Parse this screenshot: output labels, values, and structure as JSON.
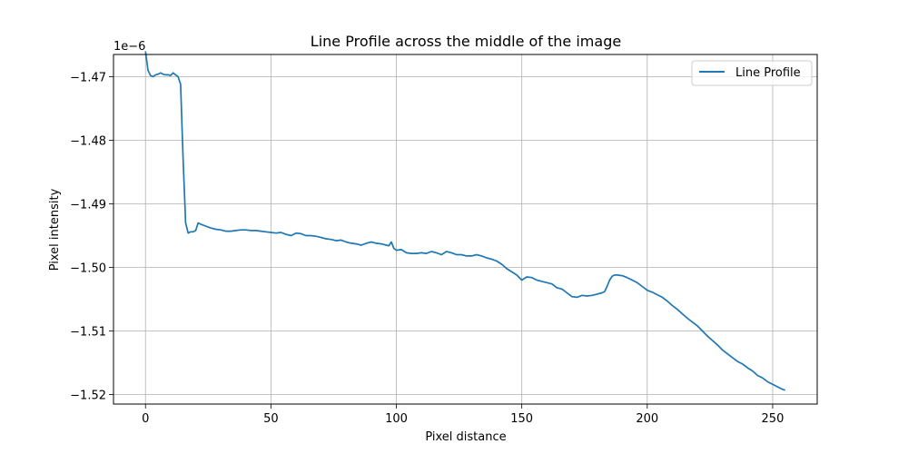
{
  "chart_data": {
    "type": "line",
    "title": "Line Profile across the middle of the image",
    "xlabel": "Pixel distance",
    "ylabel": "Pixel intensity",
    "offset_text": "1e−6",
    "xlim": [
      -12.75,
      267.75
    ],
    "ylim": [
      -1.5215,
      -1.4665
    ],
    "xticks": [
      0,
      50,
      100,
      150,
      200,
      250
    ],
    "xtick_labels": [
      "0",
      "50",
      "100",
      "150",
      "200",
      "250"
    ],
    "yticks": [
      -1.52,
      -1.51,
      -1.5,
      -1.49,
      -1.48,
      -1.47
    ],
    "ytick_labels": [
      "−1.52",
      "−1.51",
      "−1.50",
      "−1.49",
      "−1.48",
      "−1.47"
    ],
    "grid": true,
    "legend_position": "top-right",
    "series": [
      {
        "name": "Line Profile",
        "color": "#1f77b4",
        "x": [
          0,
          1,
          2,
          3,
          4,
          5,
          6,
          7,
          8,
          9,
          10,
          11,
          12,
          13,
          14,
          15,
          16,
          17,
          18,
          19,
          20,
          21,
          22,
          24,
          26,
          28,
          30,
          32,
          34,
          36,
          38,
          40,
          42,
          44,
          46,
          48,
          50,
          52,
          54,
          56,
          58,
          60,
          62,
          64,
          66,
          68,
          70,
          72,
          74,
          76,
          78,
          80,
          82,
          84,
          86,
          88,
          90,
          92,
          94,
          96,
          97,
          98,
          99,
          100,
          102,
          104,
          106,
          108,
          110,
          112,
          114,
          116,
          118,
          120,
          122,
          124,
          126,
          128,
          130,
          132,
          134,
          136,
          138,
          140,
          142,
          144,
          146,
          148,
          150,
          152,
          154,
          156,
          158,
          160,
          162,
          164,
          166,
          168,
          170,
          172,
          174,
          176,
          178,
          180,
          182,
          183,
          184,
          185,
          186,
          187,
          188,
          190,
          192,
          194,
          196,
          198,
          200,
          202,
          204,
          206,
          208,
          210,
          212,
          214,
          216,
          218,
          220,
          222,
          224,
          226,
          228,
          230,
          232,
          234,
          236,
          238,
          240,
          242,
          244,
          246,
          248,
          250,
          252,
          254,
          255
        ],
        "y": [
          -1.466,
          -1.469,
          -1.4698,
          -1.47,
          -1.4697,
          -1.4696,
          -1.4694,
          -1.4696,
          -1.4697,
          -1.4697,
          -1.4698,
          -1.4694,
          -1.4697,
          -1.47,
          -1.4712,
          -1.483,
          -1.493,
          -1.4946,
          -1.4944,
          -1.4944,
          -1.4942,
          -1.493,
          -1.4932,
          -1.4935,
          -1.4938,
          -1.494,
          -1.4941,
          -1.4943,
          -1.4943,
          -1.4942,
          -1.4941,
          -1.4941,
          -1.4942,
          -1.4942,
          -1.4943,
          -1.4944,
          -1.4945,
          -1.4946,
          -1.4945,
          -1.4948,
          -1.495,
          -1.4946,
          -1.4947,
          -1.495,
          -1.495,
          -1.4951,
          -1.4953,
          -1.4955,
          -1.4956,
          -1.4958,
          -1.4957,
          -1.496,
          -1.4962,
          -1.4963,
          -1.4965,
          -1.4962,
          -1.496,
          -1.4962,
          -1.4963,
          -1.4965,
          -1.4966,
          -1.496,
          -1.497,
          -1.4973,
          -1.4972,
          -1.4977,
          -1.4978,
          -1.4978,
          -1.4977,
          -1.4978,
          -1.4975,
          -1.4977,
          -1.498,
          -1.4975,
          -1.4977,
          -1.498,
          -1.498,
          -1.4982,
          -1.4982,
          -1.498,
          -1.4982,
          -1.4985,
          -1.4987,
          -1.499,
          -1.4995,
          -1.5002,
          -1.5007,
          -1.5012,
          -1.502,
          -1.5015,
          -1.5016,
          -1.502,
          -1.5022,
          -1.5024,
          -1.5026,
          -1.5032,
          -1.5034,
          -1.504,
          -1.5046,
          -1.5047,
          -1.5044,
          -1.5045,
          -1.5044,
          -1.5042,
          -1.504,
          -1.5038,
          -1.503,
          -1.502,
          -1.5014,
          -1.5012,
          -1.5012,
          -1.5013,
          -1.5016,
          -1.502,
          -1.5024,
          -1.503,
          -1.5036,
          -1.5039,
          -1.5043,
          -1.5047,
          -1.5053,
          -1.506,
          -1.5066,
          -1.5073,
          -1.508,
          -1.5086,
          -1.5092,
          -1.51,
          -1.5108,
          -1.5115,
          -1.5122,
          -1.513,
          -1.5136,
          -1.5142,
          -1.5148,
          -1.5152,
          -1.5158,
          -1.5163,
          -1.517,
          -1.5174,
          -1.518,
          -1.5184,
          -1.5188,
          -1.5192,
          -1.5193
        ]
      }
    ]
  }
}
